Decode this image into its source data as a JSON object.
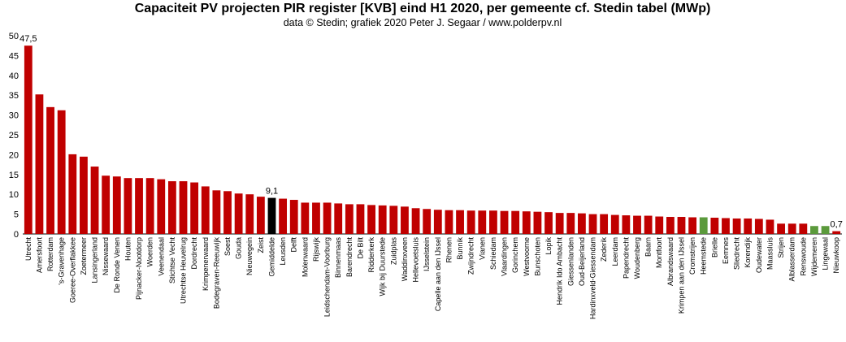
{
  "chart_data": {
    "type": "bar",
    "title": "Capaciteit PV projecten PIR register [KVB] eind H1 2020, per gemeente cf. Stedin tabel (MWp)",
    "subtitle": "data © Stedin; grafiek 2020 Peter J. Segaar / www.polderpv.nl",
    "categories": [
      "Utrecht",
      "Amersfoort",
      "Rotterdam",
      "'s-Gravenhage",
      "Goeree-Overflakkee",
      "Zoetermeer",
      "Lansingerland",
      "Nissewaard",
      "De Ronde Venen",
      "Houten",
      "Pijnacker-Nootdorp",
      "Woerden",
      "Veenendaal",
      "Stichtse Vecht",
      "Utrechtse Heuvelrug",
      "Dordrecht",
      "Krimpenerwaard",
      "Bodegraven-Reeuwijk",
      "Soest",
      "Gouda",
      "Nieuwegein",
      "Zeist",
      "Gemiddelde",
      "Leusden",
      "Delft",
      "Molenwaard",
      "Rijswijk",
      "Leidschendam-Voorburg",
      "Binnenmaas",
      "Barendrecht",
      "De Bilt",
      "Ridderkerk",
      "Wijk bij Duurstede",
      "Zuidplas",
      "Waddinxveen",
      "Hellevoetsluis",
      "IJsselstein",
      "Capelle aan den IJssel",
      "Rhenen",
      "Bunnik",
      "Zwijndrecht",
      "Vianen",
      "Schiedam",
      "Vlaardingen",
      "Gorinchem",
      "Westvoorne",
      "Bunschoten",
      "Lopik",
      "Hendrik Ido Ambacht",
      "Giessenlanden",
      "Oud-Beijerland",
      "Hardinxveld-Giessendam",
      "Zederik",
      "Leerdam",
      "Papendrecht",
      "Woudenberg",
      "Baarn",
      "Montfoort",
      "Albrandswaard",
      "Krimpen aan den IJssel",
      "Cromstrijen",
      "Heemstede",
      "Brielle",
      "Eemnes",
      "Sliedrecht",
      "Korendijk",
      "Oudewater",
      "Maassluis",
      "Strijen",
      "Alblasserdam",
      "Renswoude",
      "Wijdemeren",
      "Lingewaal",
      "Nieuwkoop"
    ],
    "values": [
      47.5,
      35.2,
      32.0,
      31.2,
      20.1,
      19.5,
      17.0,
      14.7,
      14.5,
      14.1,
      14.1,
      14.1,
      13.8,
      13.3,
      13.3,
      13.0,
      12.0,
      11.0,
      10.8,
      10.2,
      10.0,
      9.4,
      9.1,
      8.9,
      8.6,
      7.9,
      7.9,
      7.9,
      7.7,
      7.5,
      7.5,
      7.3,
      7.2,
      7.1,
      6.9,
      6.5,
      6.3,
      6.1,
      6.0,
      6.0,
      5.9,
      5.9,
      5.9,
      5.8,
      5.8,
      5.7,
      5.6,
      5.5,
      5.3,
      5.3,
      5.2,
      5.0,
      5.0,
      4.8,
      4.7,
      4.6,
      4.6,
      4.4,
      4.3,
      4.3,
      4.2,
      4.2,
      4.1,
      4.0,
      3.9,
      3.9,
      3.8,
      3.6,
      2.6,
      2.6,
      2.6,
      2.0,
      2.0,
      0.7
    ],
    "value_labels": [
      "47,5",
      null,
      null,
      null,
      null,
      null,
      null,
      null,
      null,
      null,
      null,
      null,
      null,
      null,
      null,
      null,
      null,
      null,
      null,
      null,
      null,
      null,
      "9,1",
      null,
      null,
      null,
      null,
      null,
      null,
      null,
      null,
      null,
      null,
      null,
      null,
      null,
      null,
      null,
      null,
      null,
      null,
      null,
      null,
      null,
      null,
      null,
      null,
      null,
      null,
      null,
      null,
      null,
      null,
      null,
      null,
      null,
      null,
      null,
      null,
      null,
      null,
      null,
      null,
      null,
      null,
      null,
      null,
      null,
      null,
      null,
      null,
      null,
      null,
      "0,7"
    ],
    "color": "#c00000",
    "colors": {
      "22": "#000000",
      "61": "#5b9a3c",
      "71": "#5b9a3c",
      "72": "#5b9a3c"
    },
    "ylim": [
      0,
      50
    ],
    "yticks": [
      0,
      5,
      10,
      15,
      20,
      25,
      30,
      35,
      40,
      45,
      50
    ],
    "grid": false
  }
}
